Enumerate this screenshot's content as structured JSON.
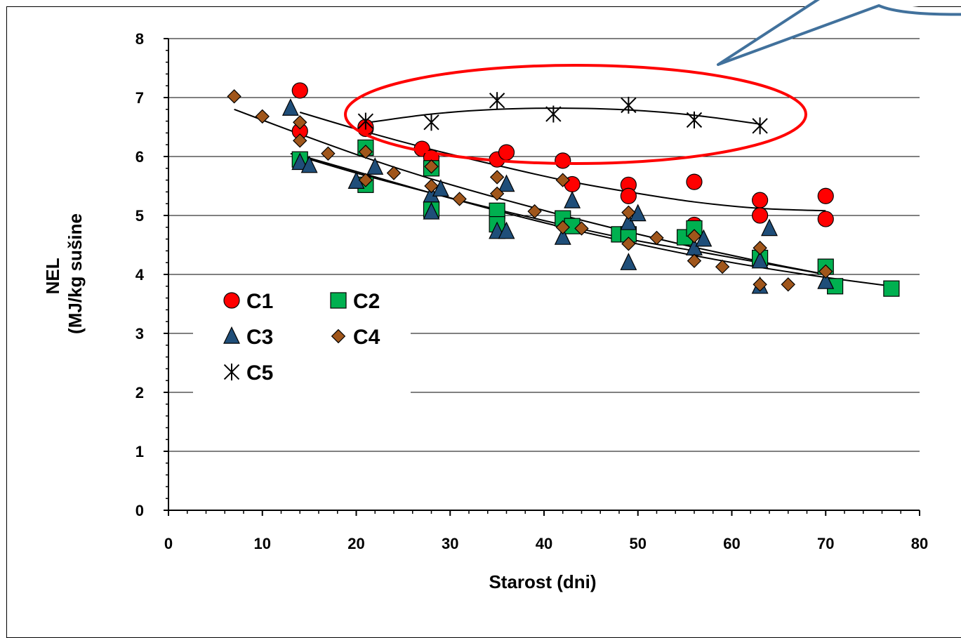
{
  "chart_data": {
    "type": "scatter",
    "xlabel": "Starost (dni)",
    "ylabel": [
      "NEL",
      "(MJ/kg sušine"
    ],
    "xlim": [
      0,
      80
    ],
    "ylim": [
      0,
      8
    ],
    "xticks": [
      0,
      10,
      20,
      30,
      40,
      50,
      60,
      70,
      80
    ],
    "yticks": [
      0,
      1,
      2,
      3,
      4,
      5,
      6,
      7,
      8
    ],
    "grid": "horizontal",
    "legend_position": "inside-lower-left",
    "series": [
      {
        "name": "C1",
        "marker": "circle",
        "color": "#ff0000",
        "x": [
          14,
          14,
          21,
          21,
          27,
          28,
          35,
          36,
          42,
          43,
          49,
          49,
          56,
          56,
          63,
          63,
          70,
          70
        ],
        "y": [
          7.12,
          6.43,
          6.47,
          6.5,
          6.13,
          5.98,
          5.95,
          6.07,
          5.93,
          5.53,
          5.52,
          5.33,
          5.57,
          4.84,
          5.26,
          5.0,
          5.33,
          4.94
        ]
      },
      {
        "name": "C2",
        "marker": "square",
        "color": "#00b050",
        "x": [
          14,
          21,
          21,
          28,
          28,
          35,
          35,
          42,
          43,
          48,
          49,
          55,
          56,
          63,
          70,
          71,
          77
        ],
        "y": [
          5.95,
          6.15,
          5.52,
          5.8,
          5.1,
          5.08,
          4.85,
          4.95,
          4.82,
          4.68,
          4.68,
          4.63,
          4.78,
          4.28,
          4.13,
          3.8,
          3.76
        ]
      },
      {
        "name": "C3",
        "marker": "triangle",
        "color": "#1f4e79",
        "x": [
          13,
          14,
          15,
          20,
          22,
          28,
          28,
          29,
          35,
          36,
          36,
          42,
          43,
          49,
          49,
          50,
          56,
          57,
          63,
          63,
          64,
          70
        ],
        "y": [
          6.82,
          5.9,
          5.85,
          5.58,
          5.82,
          5.35,
          5.06,
          5.45,
          4.73,
          4.73,
          5.53,
          4.63,
          5.25,
          4.2,
          4.88,
          5.03,
          4.45,
          4.6,
          4.23,
          3.8,
          4.78,
          3.88
        ]
      },
      {
        "name": "C4",
        "marker": "diamond",
        "color": "#a0561b",
        "x": [
          7,
          10,
          14,
          14,
          17,
          21,
          21,
          24,
          28,
          28,
          31,
          35,
          35,
          39,
          42,
          42,
          44,
          49,
          49,
          52,
          56,
          56,
          59,
          63,
          63,
          66,
          70
        ],
        "y": [
          7.02,
          6.68,
          6.58,
          6.27,
          6.05,
          6.08,
          5.6,
          5.72,
          5.83,
          5.5,
          5.28,
          5.65,
          5.37,
          5.07,
          5.6,
          4.8,
          4.78,
          5.05,
          4.52,
          4.62,
          4.65,
          4.23,
          4.13,
          4.45,
          3.83,
          3.83,
          4.05
        ]
      },
      {
        "name": "C5",
        "marker": "star",
        "color": "#000000",
        "x": [
          21,
          28,
          35,
          41,
          49,
          56,
          63
        ],
        "y": [
          6.6,
          6.58,
          6.95,
          6.72,
          6.87,
          6.62,
          6.52
        ]
      }
    ],
    "trendlines": [
      {
        "series": "C5",
        "x": [
          21,
          28,
          35,
          42,
          49,
          56,
          63
        ],
        "y": [
          6.57,
          6.72,
          6.8,
          6.82,
          6.79,
          6.7,
          6.55
        ]
      },
      {
        "series": "C1",
        "x": [
          14,
          21,
          28,
          35,
          42,
          49,
          56,
          63,
          70
        ],
        "y": [
          6.75,
          6.42,
          6.12,
          5.85,
          5.6,
          5.4,
          5.23,
          5.12,
          5.08
        ]
      },
      {
        "series": "C2",
        "x": [
          14,
          21,
          28,
          35,
          42,
          49,
          56,
          63,
          70,
          77
        ],
        "y": [
          6.02,
          5.7,
          5.38,
          5.08,
          4.8,
          4.55,
          4.32,
          4.12,
          3.95,
          3.8
        ]
      },
      {
        "series": "C3",
        "x": [
          13,
          20,
          28,
          35,
          42,
          49,
          56,
          63,
          70
        ],
        "y": [
          6.05,
          5.72,
          5.38,
          5.1,
          4.84,
          4.6,
          4.4,
          4.2,
          4.0
        ]
      },
      {
        "series": "C4",
        "x": [
          7,
          14,
          21,
          28,
          35,
          42,
          49,
          56,
          63,
          70
        ],
        "y": [
          6.8,
          6.38,
          5.98,
          5.62,
          5.3,
          5.0,
          4.72,
          4.46,
          4.22,
          4.0
        ]
      }
    ],
    "annotations": [
      {
        "type": "ellipse",
        "color": "#ff0000",
        "target": "C5"
      },
      {
        "type": "callout",
        "color": "#41719c"
      }
    ]
  }
}
